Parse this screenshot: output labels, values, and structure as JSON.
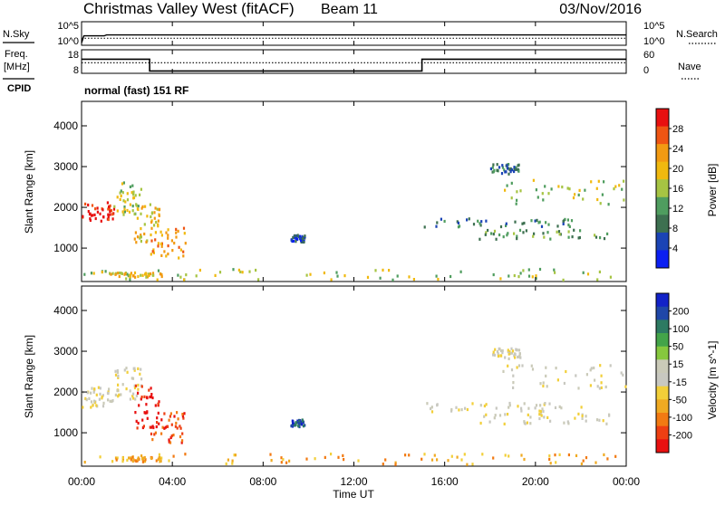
{
  "header": {
    "title": "Christmas Valley West (fitACF)",
    "beam": "Beam 11",
    "date": "03/Nov/2016"
  },
  "left_labels": {
    "nsky": "N.Sky",
    "freq": "Freq.",
    "freq_unit": "[MHz]",
    "cpid": "CPID"
  },
  "right_labels": {
    "nsearch": "N.Search",
    "nave": "Nave"
  },
  "cpid_text": "normal (fast) 151 RF",
  "colors": {
    "power": [
      "#0b1ff2",
      "#1b44b5",
      "#3d7050",
      "#4f9d5f",
      "#a6c443",
      "#f0b90f",
      "#f29a12",
      "#ef5513",
      "#e81010"
    ],
    "velocity": [
      "#e81010",
      "#ee3f12",
      "#f27a12",
      "#f0aa22",
      "#f2cf39",
      "#c8c8c0",
      "#cacab8",
      "#86c83e",
      "#43a449",
      "#2d7a62",
      "#1f47a8",
      "#1222c8"
    ]
  },
  "chart_data": [
    {
      "type": "line",
      "name": "noise",
      "ylabels_left": [
        "10^5",
        "10^0"
      ],
      "ylabels_right": [
        "10^5",
        "10^0"
      ],
      "series": [
        {
          "name": "N.Sky",
          "style": "solid",
          "x": [
            0,
            0.1,
            1.0,
            1.1,
            24
          ],
          "y": [
            0.5,
            2,
            2,
            2.2,
            2.2
          ]
        },
        {
          "name": "N.Search",
          "style": "dotted",
          "x": [
            0,
            24
          ],
          "y": [
            1.5,
            1.5
          ]
        }
      ]
    },
    {
      "type": "line",
      "name": "frequency",
      "ylabels_left": [
        "18",
        "8"
      ],
      "ylabels_right": [
        "60",
        "0"
      ],
      "series": [
        {
          "name": "Freq.",
          "style": "solid",
          "x": [
            0,
            3.0,
            3.0,
            15.0,
            15.0,
            24
          ],
          "y": [
            14,
            14,
            9,
            9,
            14,
            14
          ]
        },
        {
          "name": "Nave",
          "style": "dotted",
          "x": [
            0,
            24
          ],
          "y": [
            27,
            27
          ]
        }
      ]
    },
    {
      "type": "heatmap",
      "name": "power",
      "ylabel": "Slant Range [km]",
      "ylim": [
        180,
        4600
      ],
      "yticks": [
        1000,
        2000,
        3000,
        4000
      ],
      "colorbar_label": "Power [dB]",
      "colorbar_ticks": [
        "4",
        "8",
        "12",
        "16",
        "20",
        "24",
        "28"
      ],
      "regions": [
        {
          "t0": 0.0,
          "t1": 1.4,
          "r0": 1650,
          "r1": 2150,
          "level": 8
        },
        {
          "t0": 1.4,
          "t1": 2.6,
          "r0": 1850,
          "r1": 2650,
          "level": 4
        },
        {
          "t0": 2.3,
          "t1": 3.4,
          "r0": 1150,
          "r1": 2200,
          "level": 5
        },
        {
          "t0": 3.0,
          "t1": 4.6,
          "r0": 780,
          "r1": 1550,
          "level": 6
        },
        {
          "t0": 9.2,
          "t1": 9.8,
          "r0": 1180,
          "r1": 1350,
          "level": 1
        },
        {
          "t0": 15.0,
          "t1": 22.0,
          "r0": 1550,
          "r1": 1760,
          "level": 2
        },
        {
          "t0": 17.5,
          "t1": 23.5,
          "r0": 1250,
          "r1": 1500,
          "level": 3
        },
        {
          "t0": 18.5,
          "t1": 24.0,
          "r0": 2100,
          "r1": 2700,
          "level": 4
        },
        {
          "t0": 18.0,
          "t1": 19.3,
          "r0": 2850,
          "r1": 3100,
          "level": 2
        },
        {
          "t0": 0.0,
          "t1": 24.0,
          "r0": 250,
          "r1": 520,
          "level": 4
        },
        {
          "t0": 1.2,
          "t1": 3.5,
          "r0": 320,
          "r1": 430,
          "level": 5
        }
      ]
    },
    {
      "type": "heatmap",
      "name": "velocity",
      "ylabel": "Slant Range [km]",
      "xlabel": "Time UT",
      "ylim": [
        180,
        4600
      ],
      "yticks": [
        1000,
        2000,
        3000,
        4000
      ],
      "xticks": [
        "00:00",
        "04:00",
        "08:00",
        "12:00",
        "16:00",
        "20:00",
        "00:00"
      ],
      "colorbar_label": "Velocity [m s^-1]",
      "colorbar_ticks": [
        "-200",
        "-100",
        "-50",
        "-15",
        "15",
        "50",
        "100",
        "200"
      ],
      "regions": [
        {
          "t0": 0.0,
          "t1": 1.4,
          "r0": 1650,
          "r1": 2150,
          "level": 5
        },
        {
          "t0": 1.4,
          "t1": 2.6,
          "r0": 1850,
          "r1": 2650,
          "level": 5
        },
        {
          "t0": 2.3,
          "t1": 3.4,
          "r0": 1150,
          "r1": 2200,
          "level": 0
        },
        {
          "t0": 3.0,
          "t1": 4.6,
          "r0": 780,
          "r1": 1550,
          "level": 1
        },
        {
          "t0": 9.2,
          "t1": 9.8,
          "r0": 1180,
          "r1": 1350,
          "level": 10
        },
        {
          "t0": 15.0,
          "t1": 22.0,
          "r0": 1550,
          "r1": 1760,
          "level": 5
        },
        {
          "t0": 17.5,
          "t1": 23.5,
          "r0": 1250,
          "r1": 1500,
          "level": 5
        },
        {
          "t0": 18.5,
          "t1": 24.0,
          "r0": 2100,
          "r1": 2700,
          "level": 5
        },
        {
          "t0": 18.0,
          "t1": 19.3,
          "r0": 2850,
          "r1": 3100,
          "level": 5
        },
        {
          "t0": 0.0,
          "t1": 24.0,
          "r0": 250,
          "r1": 520,
          "level": 3
        },
        {
          "t0": 1.2,
          "t1": 3.5,
          "r0": 320,
          "r1": 430,
          "level": 3
        }
      ]
    }
  ]
}
